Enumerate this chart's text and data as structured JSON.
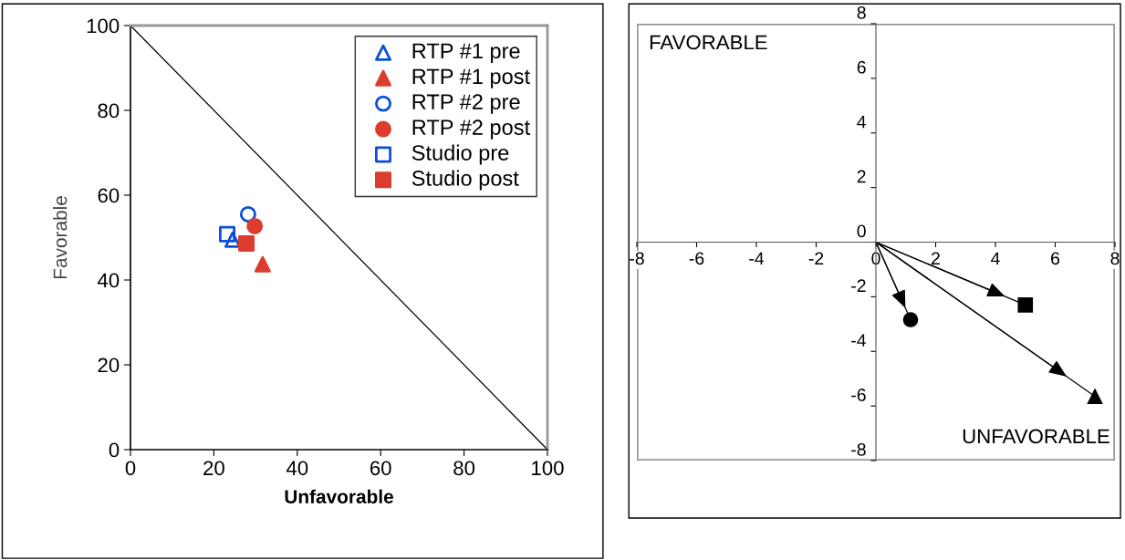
{
  "chart_data": [
    {
      "type": "scatter",
      "xlabel": "Unfavorable",
      "ylabel": "Favorable",
      "xlim": [
        0,
        100
      ],
      "ylim": [
        0,
        100
      ],
      "xticks": [
        0,
        20,
        40,
        60,
        80,
        100
      ],
      "yticks": [
        0,
        20,
        40,
        60,
        80,
        100
      ],
      "grid": false,
      "legend": "top right",
      "series": [
        {
          "name": "RTP #1 pre",
          "color": "#0b4fd6",
          "marker": "triangle",
          "x": [
            24.5
          ],
          "values": [
            49.5
          ]
        },
        {
          "name": "RTP #1 post",
          "color": "#dc3c2e",
          "marker": "triangle",
          "x": [
            31.7
          ],
          "values": [
            43.7
          ]
        },
        {
          "name": "RTP #2 pre",
          "color": "#0b4fd6",
          "marker": "circle",
          "x": [
            28.2
          ],
          "values": [
            55.5
          ]
        },
        {
          "name": "RTP #2 post",
          "color": "#dc3c2e",
          "marker": "circle",
          "x": [
            29.8
          ],
          "values": [
            52.7
          ]
        },
        {
          "name": "Studio pre",
          "color": "#0b4fd6",
          "marker": "square",
          "x": [
            23.2
          ],
          "values": [
            50.8
          ]
        },
        {
          "name": "Studio post",
          "color": "#dc3c2e",
          "marker": "square",
          "x": [
            27.8
          ],
          "values": [
            48.6
          ]
        },
        {
          "type": "line",
          "color": "#000000",
          "marker": "none",
          "x": [
            0,
            100
          ],
          "values": [
            100,
            0
          ]
        }
      ]
    },
    {
      "type": "line",
      "xlim": [
        -8,
        8
      ],
      "ylim": [
        -8,
        8
      ],
      "xticks": [
        -8,
        -6,
        -4,
        -2,
        0,
        2,
        4,
        6,
        8
      ],
      "yticks": [
        -8,
        -6,
        -4,
        -2,
        0,
        2,
        4,
        6,
        8
      ],
      "grid": false,
      "legend": false,
      "annotations": [
        "FAVORABLE",
        "UNFAVORABLE"
      ],
      "series": [
        {
          "color": "#000000",
          "marker": "circle",
          "x": [
            0,
            1.16
          ],
          "values": [
            0,
            -2.84
          ]
        },
        {
          "color": "#000000",
          "marker": "square",
          "x": [
            0,
            5.0
          ],
          "values": [
            0,
            -2.3
          ]
        },
        {
          "color": "#000000",
          "marker": "triangle",
          "x": [
            0,
            7.33
          ],
          "values": [
            0,
            -5.65
          ]
        }
      ]
    }
  ]
}
